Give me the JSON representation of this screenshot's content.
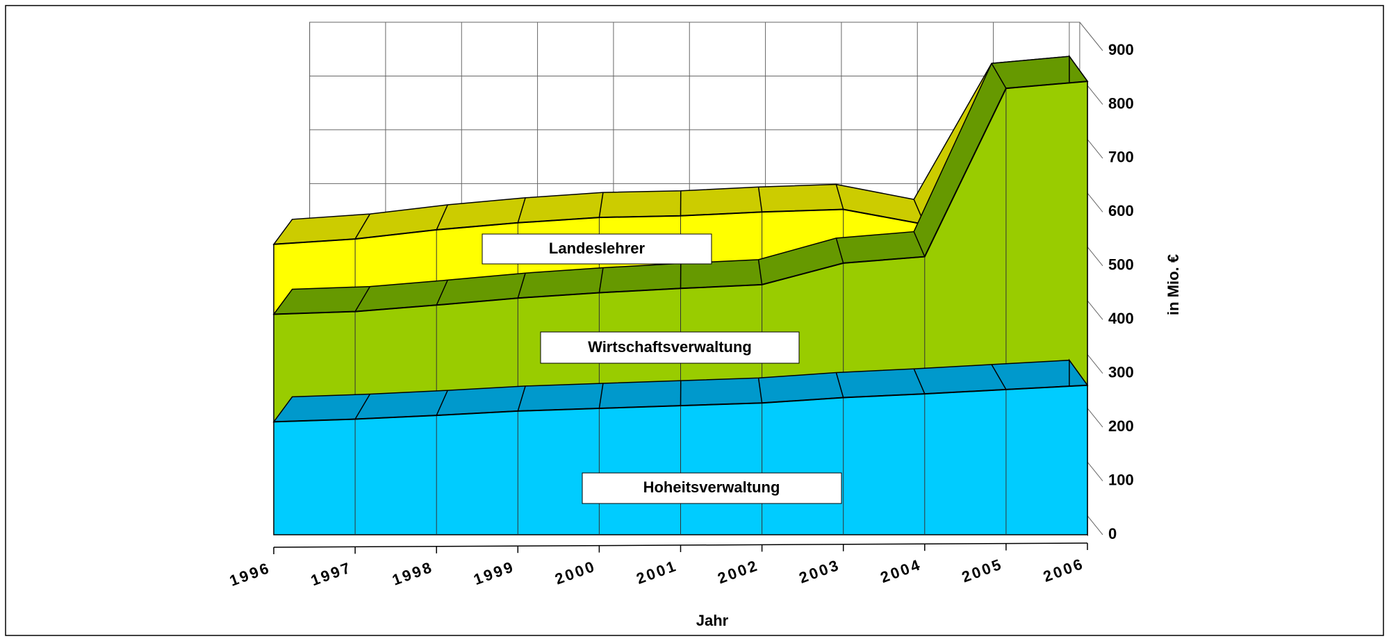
{
  "chart_data": {
    "type": "area3d",
    "categories": [
      "1996",
      "1997",
      "1998",
      "1999",
      "2000",
      "2001",
      "2002",
      "2003",
      "2004",
      "2005",
      "2006"
    ],
    "series": [
      {
        "name": "Hoheitsverwaltung",
        "color": "#00ccff",
        "top_color": "#0099cc",
        "values": [
          210,
          215,
          222,
          230,
          235,
          240,
          245,
          255,
          262,
          270,
          278
        ]
      },
      {
        "name": "Wirtschaftsverwaltung",
        "color": "#99cc00",
        "top_color": "#669900",
        "values": [
          200,
          200,
          205,
          210,
          215,
          218,
          220,
          250,
          255,
          560,
          565
        ]
      },
      {
        "name": "Landeslehrer",
        "color": "#ffff00",
        "top_color": "#cccc00",
        "values": [
          130,
          135,
          140,
          140,
          140,
          135,
          135,
          100,
          60,
          0,
          0
        ]
      }
    ],
    "ylabel": "in Mio. €",
    "xlabel": "Jahr",
    "ylim": [
      0,
      900
    ],
    "yticks": [
      0,
      100,
      200,
      300,
      400,
      500,
      600,
      700,
      800,
      900
    ],
    "grid": true
  }
}
